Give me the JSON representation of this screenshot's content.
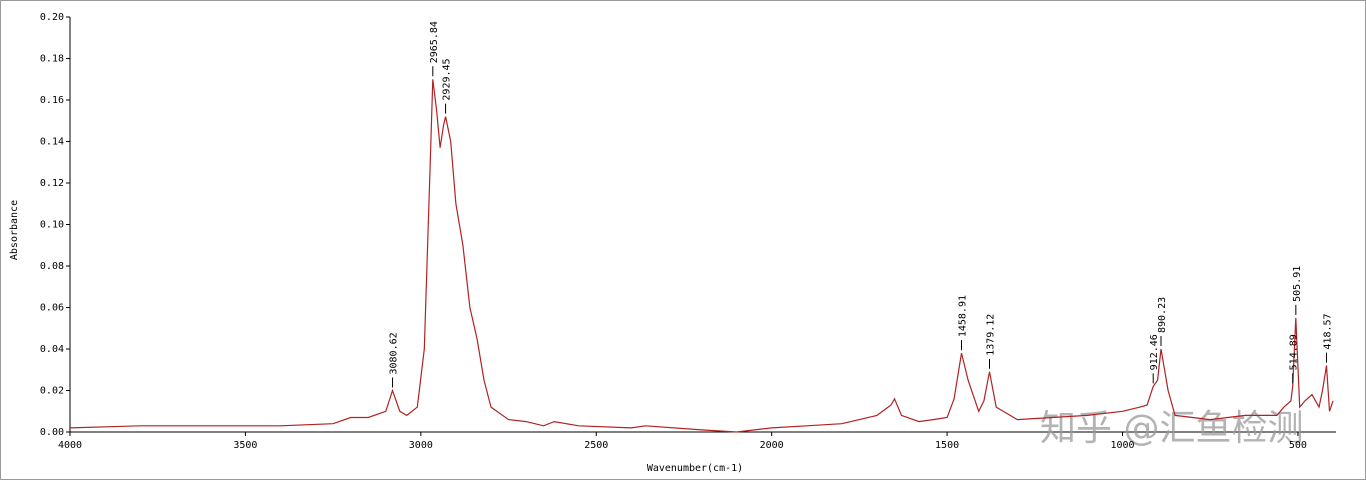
{
  "chart_data": {
    "type": "line",
    "x_label": "Wavenumber(cm-1)",
    "y_label": "Absorbance",
    "watermark": "知乎 @汇鱼检测",
    "xlim": [
      4000,
      400
    ],
    "ylim": [
      0,
      0.2
    ],
    "xticks": [
      4000,
      3500,
      3000,
      2500,
      2000,
      1500,
      1000,
      500
    ],
    "yticks": [
      {
        "value": 0,
        "label": "0.00"
      },
      {
        "value": 0.02,
        "label": "0.02"
      },
      {
        "value": 0.04,
        "label": "0.04"
      },
      {
        "value": 0.06,
        "label": "0.06"
      },
      {
        "value": 0.08,
        "label": "0.08"
      },
      {
        "value": 0.1,
        "label": "0.10"
      },
      {
        "value": 0.12,
        "label": "0.12"
      },
      {
        "value": 0.14,
        "label": "0.14"
      },
      {
        "value": 0.16,
        "label": "0.16"
      },
      {
        "value": 0.18,
        "label": "0.18"
      },
      {
        "value": 0.2,
        "label": "0.20"
      }
    ],
    "color": "#b22222",
    "x": [
      4000,
      3800,
      3600,
      3400,
      3250,
      3200,
      3150,
      3100,
      3080.62,
      3060,
      3040,
      3010,
      2990,
      2975,
      2965.84,
      2955,
      2945,
      2935,
      2929.45,
      2915,
      2900,
      2880,
      2860,
      2840,
      2820,
      2800,
      2750,
      2700,
      2650,
      2620,
      2550,
      2400,
      2360,
      2200,
      2100,
      2000,
      1900,
      1800,
      1700,
      1660,
      1650,
      1630,
      1580,
      1540,
      1500,
      1480,
      1458.91,
      1440,
      1410,
      1395,
      1379.12,
      1360,
      1300,
      1200,
      1100,
      1000,
      950,
      930,
      912.46,
      900,
      890.23,
      870,
      850,
      750,
      650,
      560,
      540,
      520,
      514.89,
      505.91,
      495,
      480,
      460,
      440,
      430,
      418.57,
      410,
      400
    ],
    "values": [
      0.002,
      0.003,
      0.003,
      0.003,
      0.004,
      0.007,
      0.007,
      0.01,
      0.02,
      0.01,
      0.008,
      0.012,
      0.04,
      0.12,
      0.17,
      0.155,
      0.137,
      0.148,
      0.152,
      0.14,
      0.11,
      0.09,
      0.06,
      0.045,
      0.025,
      0.012,
      0.006,
      0.005,
      0.003,
      0.005,
      0.003,
      0.002,
      0.003,
      0.001,
      0.0,
      0.002,
      0.003,
      0.004,
      0.008,
      0.013,
      0.016,
      0.008,
      0.005,
      0.006,
      0.007,
      0.016,
      0.038,
      0.025,
      0.01,
      0.015,
      0.029,
      0.012,
      0.006,
      0.007,
      0.008,
      0.01,
      0.012,
      0.013,
      0.022,
      0.025,
      0.04,
      0.02,
      0.008,
      0.006,
      0.008,
      0.008,
      0.012,
      0.015,
      0.022,
      0.055,
      0.012,
      0.015,
      0.018,
      0.012,
      0.02,
      0.032,
      0.01,
      0.015
    ],
    "peaks": [
      3080.62,
      2965.84,
      2929.45,
      1458.91,
      1379.12,
      912.46,
      890.23,
      514.89,
      505.91,
      418.57
    ]
  }
}
